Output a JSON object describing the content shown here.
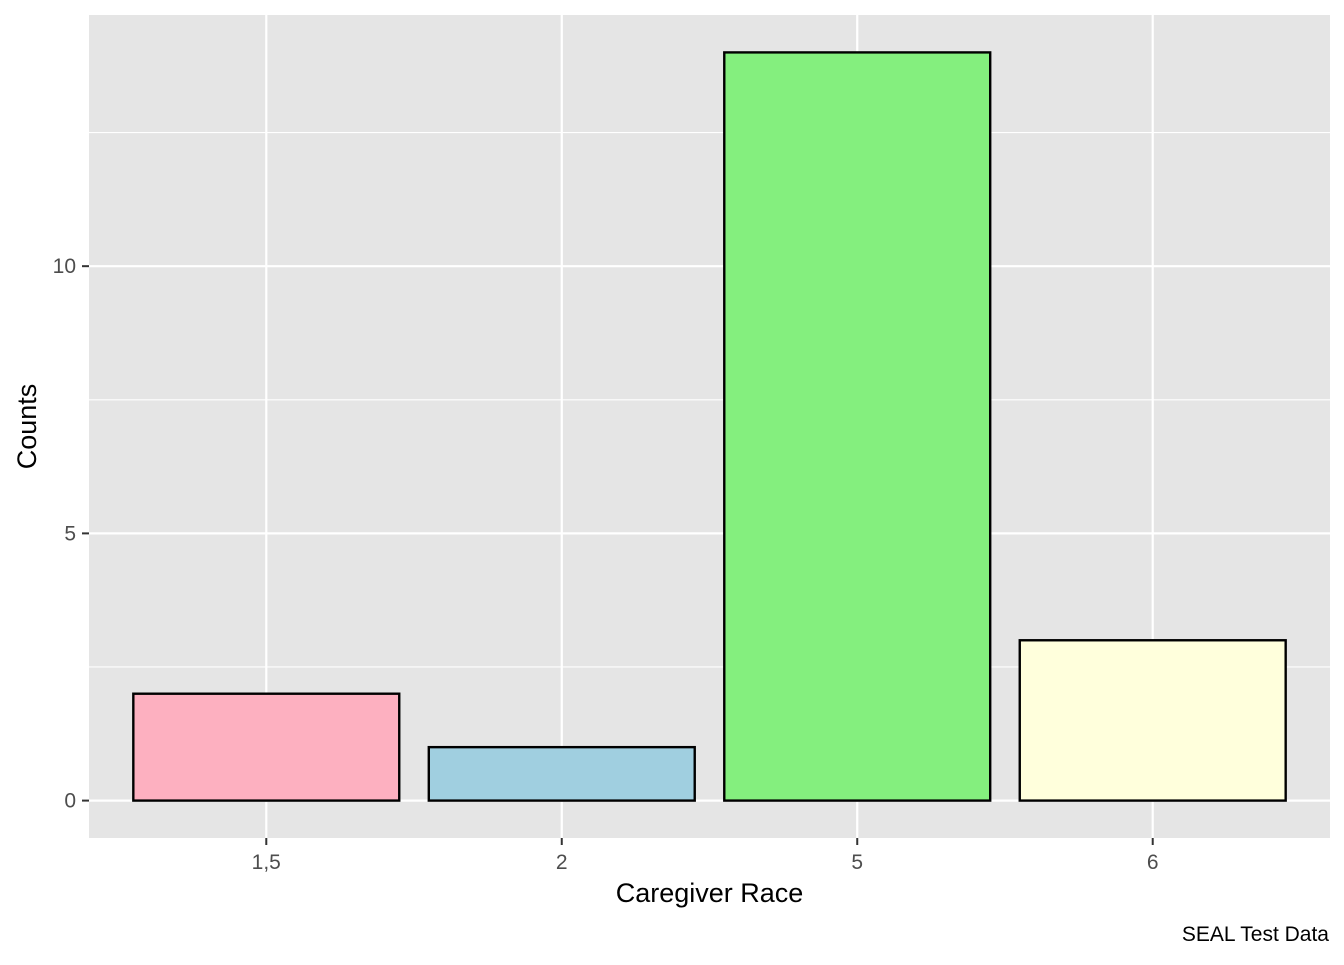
{
  "chart_data": {
    "type": "bar",
    "categories": [
      "1,5",
      "2",
      "5",
      "6"
    ],
    "values": [
      2,
      1,
      14,
      3
    ],
    "colors": [
      "#FDB0C0",
      "#A0CFE0",
      "#84EF7E",
      "#FFFFDC"
    ],
    "xlabel": "Caregiver Race",
    "ylabel": "Counts",
    "caption": "SEAL Test Data",
    "yticks": [
      "0",
      "5",
      "10"
    ],
    "ylim": [
      -0.7,
      14.7
    ],
    "grid": true,
    "panel_background": "#E5E5E5",
    "grid_color": "#FFFFFF",
    "bar_outline": "#000000"
  }
}
